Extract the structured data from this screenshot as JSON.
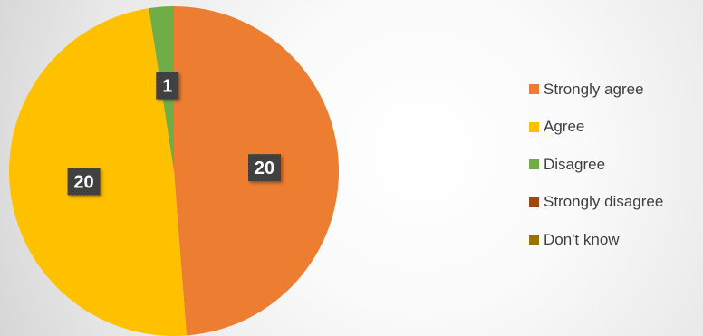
{
  "chart_data": {
    "type": "pie",
    "categories": [
      "Strongly agree",
      "Agree",
      "Disagree",
      "Strongly disagree",
      "Don't know"
    ],
    "values": [
      20,
      20,
      1,
      0,
      0
    ],
    "data_labels": [
      "20",
      "20",
      "1",
      "",
      ""
    ],
    "colors": [
      "#ED7D31",
      "#FFC000",
      "#70AD47",
      "#9E480E",
      "#997300"
    ],
    "title": "",
    "legend_position": "right",
    "label_box_color": "#404040",
    "start_angle_deg": 0,
    "direction": "clockwise"
  }
}
